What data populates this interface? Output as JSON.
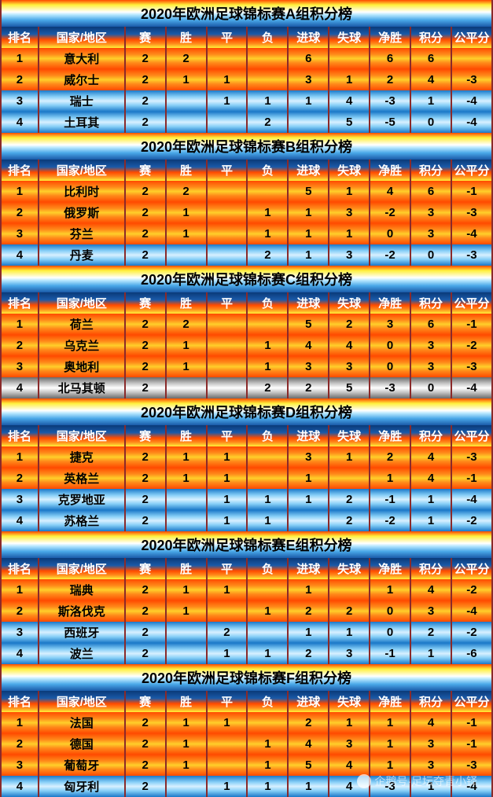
{
  "gradients": {
    "title": "linear-gradient(to bottom,#ff4a00 0%,#ffef3a 18%,#ffffff 45%,#b8e8ff 55%,#4aa8e8 75%,#1a5aa8 100%)",
    "header": "linear-gradient(to bottom,#0a3a78 0%,#1a5aa8 35%,#ff4a00 60%,#ff8a1a 80%,#ffef3a 100%)",
    "gold": "linear-gradient(to bottom,#ff4a00 0%,#ff8a1a 30%,#ffcf2a 50%,#ff8a1a 70%,#ff4a00 100%)",
    "blue": "linear-gradient(to bottom,#1a78c8 0%,#88d0f8 30%,#d8f0ff 50%,#88d0f8 70%,#1a78c8 100%)",
    "silver": "linear-gradient(to bottom,#6a6a6a 0%,#c8c8c8 30%,#ffffff 50%,#c8c8c8 70%,#6a6a6a 100%)"
  },
  "columns": [
    "排名",
    "国家/地区",
    "赛",
    "胜",
    "平",
    "负",
    "进球",
    "失球",
    "净胜",
    "积分",
    "公平分"
  ],
  "watermark": "企鹅号·足坛夺青小铎",
  "groups": [
    {
      "title": "2020年欧洲足球锦标赛A组积分榜",
      "rows": [
        {
          "style": "gold",
          "cells": [
            "1",
            "意大利",
            "2",
            "2",
            "",
            "",
            "6",
            "",
            "6",
            "6",
            ""
          ]
        },
        {
          "style": "gold",
          "cells": [
            "2",
            "威尔士",
            "2",
            "1",
            "1",
            "",
            "3",
            "1",
            "2",
            "4",
            "-3"
          ]
        },
        {
          "style": "blue",
          "cells": [
            "3",
            "瑞士",
            "2",
            "",
            "1",
            "1",
            "1",
            "4",
            "-3",
            "1",
            "-4"
          ]
        },
        {
          "style": "blue",
          "cells": [
            "4",
            "土耳其",
            "2",
            "",
            "",
            "2",
            "",
            "5",
            "-5",
            "0",
            "-4"
          ]
        }
      ]
    },
    {
      "title": "2020年欧洲足球锦标赛B组积分榜",
      "rows": [
        {
          "style": "gold",
          "cells": [
            "1",
            "比利时",
            "2",
            "2",
            "",
            "",
            "5",
            "1",
            "4",
            "6",
            "-1"
          ]
        },
        {
          "style": "gold",
          "cells": [
            "2",
            "俄罗斯",
            "2",
            "1",
            "",
            "1",
            "1",
            "3",
            "-2",
            "3",
            "-3"
          ]
        },
        {
          "style": "gold",
          "cells": [
            "3",
            "芬兰",
            "2",
            "1",
            "",
            "1",
            "1",
            "1",
            "0",
            "3",
            "-4"
          ]
        },
        {
          "style": "blue",
          "cells": [
            "4",
            "丹麦",
            "2",
            "",
            "",
            "2",
            "1",
            "3",
            "-2",
            "0",
            "-3"
          ]
        }
      ]
    },
    {
      "title": "2020年欧洲足球锦标赛C组积分榜",
      "rows": [
        {
          "style": "gold",
          "cells": [
            "1",
            "荷兰",
            "2",
            "2",
            "",
            "",
            "5",
            "2",
            "3",
            "6",
            "-1"
          ]
        },
        {
          "style": "gold",
          "cells": [
            "2",
            "乌克兰",
            "2",
            "1",
            "",
            "1",
            "4",
            "4",
            "0",
            "3",
            "-2"
          ]
        },
        {
          "style": "gold",
          "cells": [
            "3",
            "奥地利",
            "2",
            "1",
            "",
            "1",
            "3",
            "3",
            "0",
            "3",
            "-3"
          ]
        },
        {
          "style": "silver",
          "cells": [
            "4",
            "北马其顿",
            "2",
            "",
            "",
            "2",
            "2",
            "5",
            "-3",
            "0",
            "-4"
          ]
        }
      ]
    },
    {
      "title": "2020年欧洲足球锦标赛D组积分榜",
      "rows": [
        {
          "style": "gold",
          "cells": [
            "1",
            "捷克",
            "2",
            "1",
            "1",
            "",
            "3",
            "1",
            "2",
            "4",
            "-3"
          ]
        },
        {
          "style": "gold",
          "cells": [
            "2",
            "英格兰",
            "2",
            "1",
            "1",
            "",
            "1",
            "",
            "1",
            "4",
            "-1"
          ]
        },
        {
          "style": "blue",
          "cells": [
            "3",
            "克罗地亚",
            "2",
            "",
            "1",
            "1",
            "1",
            "2",
            "-1",
            "1",
            "-4"
          ]
        },
        {
          "style": "blue",
          "cells": [
            "4",
            "苏格兰",
            "2",
            "",
            "1",
            "1",
            "",
            "2",
            "-2",
            "1",
            "-2"
          ]
        }
      ]
    },
    {
      "title": "2020年欧洲足球锦标赛E组积分榜",
      "rows": [
        {
          "style": "gold",
          "cells": [
            "1",
            "瑞典",
            "2",
            "1",
            "1",
            "",
            "1",
            "",
            "1",
            "4",
            "-2"
          ]
        },
        {
          "style": "gold",
          "cells": [
            "2",
            "斯洛伐克",
            "2",
            "1",
            "",
            "1",
            "2",
            "2",
            "0",
            "3",
            "-4"
          ]
        },
        {
          "style": "blue",
          "cells": [
            "3",
            "西班牙",
            "2",
            "",
            "2",
            "",
            "1",
            "1",
            "0",
            "2",
            "-2"
          ]
        },
        {
          "style": "blue",
          "cells": [
            "4",
            "波兰",
            "2",
            "",
            "1",
            "1",
            "2",
            "3",
            "-1",
            "1",
            "-6"
          ]
        }
      ]
    },
    {
      "title": "2020年欧洲足球锦标赛F组积分榜",
      "rows": [
        {
          "style": "gold",
          "cells": [
            "1",
            "法国",
            "2",
            "1",
            "1",
            "",
            "2",
            "1",
            "1",
            "4",
            "-1"
          ]
        },
        {
          "style": "gold",
          "cells": [
            "2",
            "德国",
            "2",
            "1",
            "",
            "1",
            "4",
            "3",
            "1",
            "3",
            "-1"
          ]
        },
        {
          "style": "gold",
          "cells": [
            "3",
            "葡萄牙",
            "2",
            "1",
            "",
            "1",
            "5",
            "4",
            "1",
            "3",
            "-3"
          ]
        },
        {
          "style": "blue",
          "cells": [
            "4",
            "匈牙利",
            "2",
            "",
            "1",
            "1",
            "1",
            "4",
            "-3",
            "1",
            "-4"
          ]
        }
      ]
    }
  ]
}
